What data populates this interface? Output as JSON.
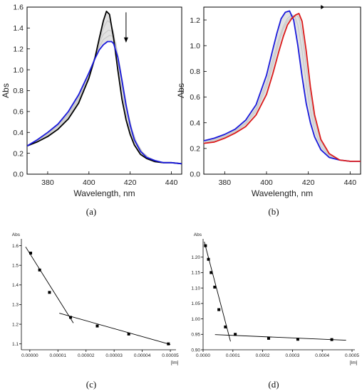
{
  "chart_data": [
    {
      "id": "a",
      "caption": "(a)",
      "type": "line",
      "xlabel": "Wavelength, nm",
      "ylabel": "Abs",
      "xlim": [
        370,
        445
      ],
      "ylim": [
        0.0,
        1.6
      ],
      "xticks": [
        380,
        400,
        420,
        440
      ],
      "xtick_labels": [
        "380",
        "400",
        "420",
        "440"
      ],
      "yticks": [
        0.0,
        0.2,
        0.4,
        0.6,
        0.8,
        1.0,
        1.2,
        1.4,
        1.6
      ],
      "ytick_labels": [
        "0.0",
        "0.2",
        "0.4",
        "0.6",
        "0.8",
        "1.0",
        "1.2",
        "1.4",
        "1.6"
      ],
      "annotation": "down-arrow near 418 nm",
      "series": [
        {
          "color": "#000000",
          "x": [
            370,
            375,
            380,
            385,
            390,
            395,
            400,
            403,
            405,
            407,
            408.5,
            410,
            412,
            414,
            416,
            418,
            420,
            422,
            425,
            428,
            432,
            436,
            440,
            445
          ],
          "y": [
            0.27,
            0.31,
            0.36,
            0.43,
            0.53,
            0.68,
            0.92,
            1.12,
            1.3,
            1.47,
            1.56,
            1.53,
            1.3,
            1.0,
            0.72,
            0.52,
            0.38,
            0.28,
            0.19,
            0.15,
            0.12,
            0.11,
            0.11,
            0.1
          ]
        },
        {
          "color": "#c8c8c8",
          "x": [
            370,
            375,
            380,
            385,
            390,
            395,
            400,
            403,
            405,
            407,
            409,
            410.5,
            412,
            414,
            416,
            418,
            420,
            422,
            425,
            428,
            432,
            436,
            440,
            445
          ],
          "y": [
            0.27,
            0.31,
            0.37,
            0.44,
            0.55,
            0.7,
            0.94,
            1.13,
            1.28,
            1.4,
            1.47,
            1.45,
            1.35,
            1.1,
            0.82,
            0.58,
            0.42,
            0.31,
            0.21,
            0.16,
            0.13,
            0.11,
            0.11,
            0.1
          ]
        },
        {
          "color": "#c8c8c8",
          "x": [
            370,
            375,
            380,
            385,
            390,
            395,
            400,
            403,
            405,
            407,
            409.5,
            411,
            413,
            415,
            417,
            419,
            421,
            423,
            426,
            429,
            432,
            436,
            440,
            445
          ],
          "y": [
            0.27,
            0.32,
            0.38,
            0.46,
            0.57,
            0.72,
            0.95,
            1.13,
            1.26,
            1.34,
            1.38,
            1.37,
            1.26,
            1.02,
            0.76,
            0.55,
            0.4,
            0.3,
            0.21,
            0.16,
            0.13,
            0.11,
            0.11,
            0.1
          ]
        },
        {
          "color": "#c8c8c8",
          "x": [
            370,
            375,
            380,
            385,
            390,
            395,
            400,
            403,
            405,
            407,
            410,
            411.5,
            413,
            415,
            417,
            419,
            421,
            423,
            426,
            429,
            432,
            436,
            440,
            445
          ],
          "y": [
            0.27,
            0.32,
            0.39,
            0.47,
            0.58,
            0.74,
            0.96,
            1.12,
            1.22,
            1.29,
            1.33,
            1.32,
            1.24,
            1.04,
            0.8,
            0.58,
            0.42,
            0.31,
            0.21,
            0.16,
            0.13,
            0.11,
            0.11,
            0.1
          ]
        },
        {
          "color": "#1a1adc",
          "x": [
            370,
            375,
            380,
            385,
            390,
            395,
            400,
            403,
            405,
            407,
            409,
            411,
            412,
            414,
            416,
            418,
            420,
            422,
            425,
            428,
            432,
            436,
            440,
            445
          ],
          "y": [
            0.27,
            0.33,
            0.4,
            0.48,
            0.6,
            0.76,
            0.97,
            1.11,
            1.19,
            1.24,
            1.27,
            1.27,
            1.25,
            1.12,
            0.9,
            0.66,
            0.47,
            0.33,
            0.22,
            0.16,
            0.13,
            0.11,
            0.11,
            0.1
          ]
        }
      ]
    },
    {
      "id": "b",
      "caption": "(b)",
      "type": "line",
      "xlabel": "Wavelength, nm",
      "ylabel": "Abs",
      "xlim": [
        370,
        445
      ],
      "ylim": [
        0.0,
        1.3
      ],
      "xticks": [
        380,
        400,
        420,
        440
      ],
      "xtick_labels": [
        "380",
        "400",
        "420",
        "440"
      ],
      "yticks": [
        0.0,
        0.2,
        0.4,
        0.6,
        0.8,
        1.0,
        1.2
      ],
      "ytick_labels": [
        "0.0",
        "0.2",
        "0.4",
        "0.6",
        "0.8",
        "1.0",
        "1.2"
      ],
      "annotation": "right-arrow near top",
      "series": [
        {
          "color": "#1a1adc",
          "x": [
            370,
            375,
            380,
            385,
            390,
            395,
            400,
            403,
            405,
            407,
            409,
            411,
            413,
            415,
            417,
            419,
            421,
            423,
            426,
            430,
            435,
            440,
            445
          ],
          "y": [
            0.26,
            0.28,
            0.31,
            0.35,
            0.42,
            0.54,
            0.77,
            0.97,
            1.1,
            1.21,
            1.26,
            1.27,
            1.2,
            1.0,
            0.76,
            0.55,
            0.4,
            0.29,
            0.19,
            0.13,
            0.11,
            0.1,
            0.1
          ]
        },
        {
          "color": "#c8c8c8",
          "x": [
            370,
            375,
            380,
            385,
            390,
            395,
            400,
            403,
            406,
            408,
            410,
            412,
            413.5,
            415,
            417,
            419,
            421,
            423,
            426,
            430,
            435,
            440,
            445
          ],
          "y": [
            0.25,
            0.27,
            0.3,
            0.34,
            0.4,
            0.51,
            0.71,
            0.89,
            1.06,
            1.15,
            1.21,
            1.24,
            1.23,
            1.16,
            0.96,
            0.71,
            0.5,
            0.35,
            0.22,
            0.14,
            0.11,
            0.1,
            0.1
          ]
        },
        {
          "color": "#c8c8c8",
          "x": [
            370,
            375,
            380,
            385,
            390,
            395,
            400,
            403,
            406,
            408,
            410,
            412,
            414,
            415.5,
            417,
            419,
            421,
            423,
            426,
            430,
            435,
            440,
            445
          ],
          "y": [
            0.25,
            0.26,
            0.29,
            0.33,
            0.39,
            0.49,
            0.68,
            0.85,
            1.03,
            1.13,
            1.19,
            1.22,
            1.24,
            1.22,
            1.1,
            0.84,
            0.6,
            0.41,
            0.25,
            0.15,
            0.11,
            0.1,
            0.1
          ]
        },
        {
          "color": "#dc1a1a",
          "x": [
            370,
            375,
            380,
            385,
            390,
            395,
            400,
            403,
            406,
            408,
            410,
            412,
            414,
            415.5,
            417,
            419,
            421,
            423,
            426,
            430,
            435,
            440,
            445
          ],
          "y": [
            0.24,
            0.25,
            0.28,
            0.32,
            0.37,
            0.46,
            0.62,
            0.78,
            0.96,
            1.07,
            1.16,
            1.21,
            1.24,
            1.25,
            1.19,
            0.96,
            0.68,
            0.46,
            0.27,
            0.16,
            0.11,
            0.1,
            0.1
          ]
        }
      ]
    },
    {
      "id": "c",
      "caption": "(c)",
      "type": "scatter",
      "xlabel": "[Im]",
      "ylabel": "Abs",
      "xlim": [
        -3e-06,
        5.1e-05
      ],
      "ylim": [
        1.07,
        1.62
      ],
      "xticks": [
        0,
        1e-05,
        2e-05,
        3e-05,
        4e-05,
        5e-05
      ],
      "xtick_labels": [
        "0.00000",
        "0.00001",
        "0.00002",
        "0.00003",
        "0.00004",
        "0.00005"
      ],
      "yticks": [
        1.1,
        1.2,
        1.3,
        1.4,
        1.5,
        1.6
      ],
      "ytick_labels": [
        "1.1",
        "1.2",
        "1.3",
        "1.4",
        "1.5",
        "1.6"
      ],
      "points": {
        "x": [
          3e-07,
          3.5e-06,
          7e-06,
          1.45e-05,
          2.4e-05,
          3.52e-05,
          4.93e-05
        ],
        "y": [
          1.562,
          1.476,
          1.362,
          1.235,
          1.191,
          1.15,
          1.1
        ]
      },
      "fit_lines": [
        {
          "x": [
            -1.5e-06,
            1.55e-05
          ],
          "y": [
            1.594,
            1.206
          ]
        },
        {
          "x": [
            1.05e-05,
            5e-05
          ],
          "y": [
            1.256,
            1.097
          ]
        }
      ]
    },
    {
      "id": "d",
      "caption": "(d)",
      "type": "scatter",
      "xlabel": "[Im]",
      "ylabel": "Abs",
      "xlim": [
        0.0,
        0.0005
      ],
      "ylim": [
        0.9,
        1.25
      ],
      "xticks": [
        0.0,
        0.0001,
        0.0002,
        0.0003,
        0.0004,
        0.0005
      ],
      "xtick_labels": [
        "0.0000",
        "0.0001",
        "0.0002",
        "0.0003",
        "0.0004",
        "0.0005"
      ],
      "yticks": [
        0.9,
        0.95,
        1.0,
        1.05,
        1.1,
        1.15,
        1.2
      ],
      "ytick_labels": [
        "0.90",
        "0.95",
        "1.00",
        "1.05",
        "1.10",
        "1.15",
        "1.20"
      ],
      "points": {
        "x": [
          8e-06,
          1.8e-05,
          2.7e-05,
          3.9e-05,
          5.3e-05,
          7.5e-05,
          0.000108,
          0.00022,
          0.000318,
          0.000432
        ],
        "y": [
          1.237,
          1.193,
          1.15,
          1.103,
          1.03,
          0.974,
          0.95,
          0.937,
          0.934,
          0.933
        ]
      },
      "fit_lines": [
        {
          "x": [
            4e-06,
            9.2e-05
          ],
          "y": [
            1.25,
            0.927
          ]
        },
        {
          "x": [
            4e-05,
            0.00048
          ],
          "y": [
            0.949,
            0.931
          ]
        }
      ]
    }
  ]
}
